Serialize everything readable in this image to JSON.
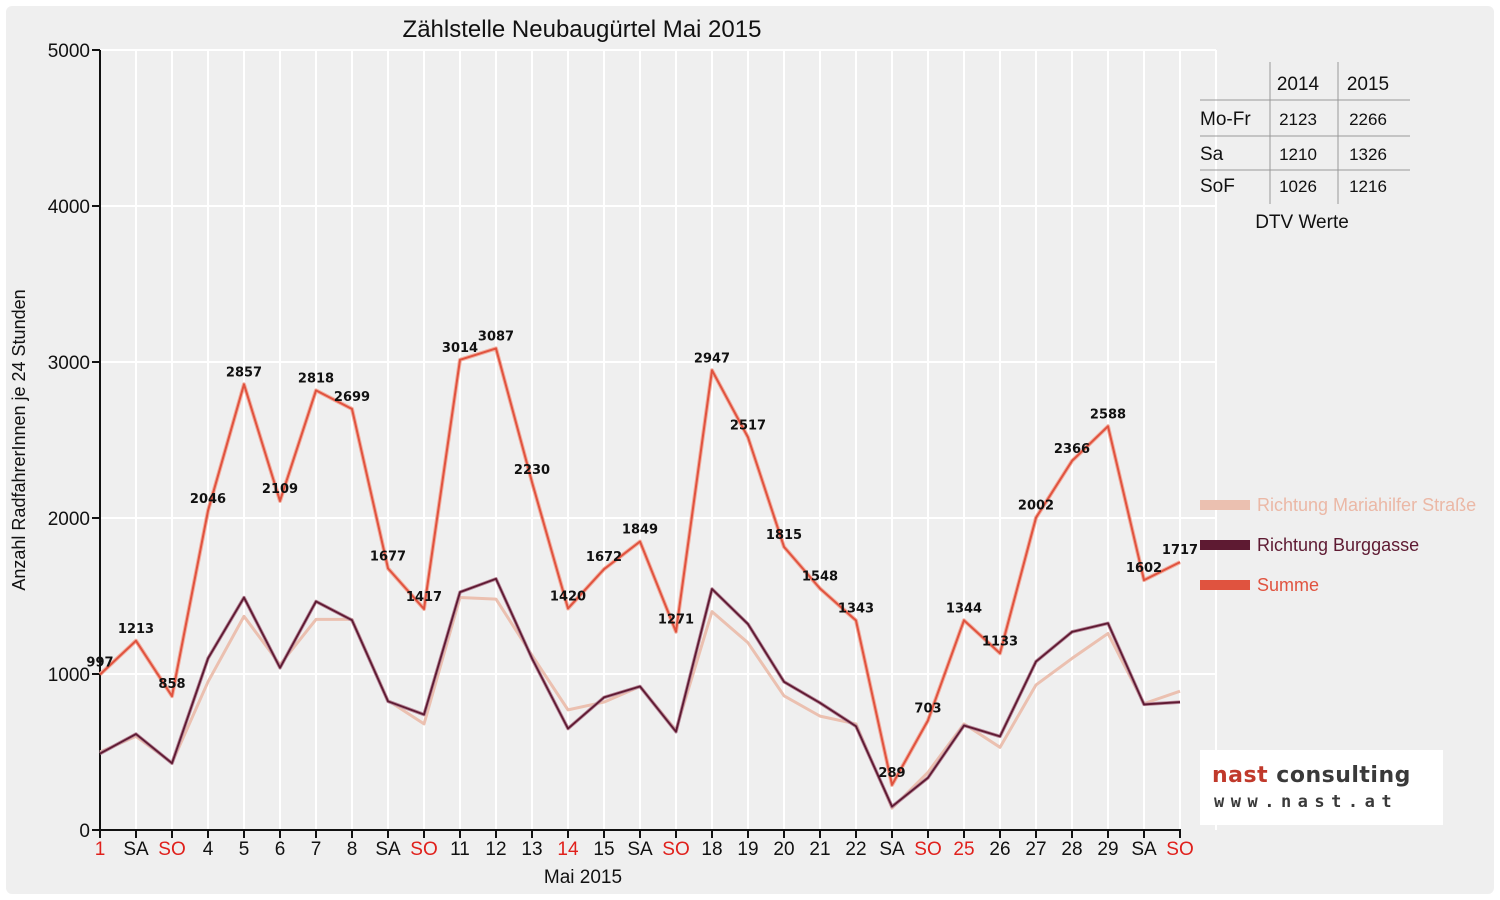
{
  "chart_data": {
    "type": "line",
    "title": "Zählstelle Neubaugürtel Mai 2015",
    "xlabel": "Mai 2015",
    "ylabel": "Anzahl RadfahrerInnen je 24 Stunden",
    "ylim": [
      0,
      5000
    ],
    "yticks": [
      0,
      1000,
      2000,
      3000,
      4000,
      5000
    ],
    "grid": "vertical",
    "legend_position": "right",
    "categories": [
      "1",
      "SA",
      "SO",
      "4",
      "5",
      "6",
      "7",
      "8",
      "SA",
      "SO",
      "11",
      "12",
      "13",
      "14",
      "15",
      "SA",
      "SO",
      "18",
      "19",
      "20",
      "21",
      "22",
      "SA",
      "SO",
      "25",
      "26",
      "27",
      "28",
      "29",
      "SA",
      "SO"
    ],
    "highlight_categories": [
      0,
      2,
      9,
      13,
      16,
      23,
      24,
      30
    ],
    "series": [
      {
        "name": "Richtung Mariahilfer Straße",
        "color": "#ebc0b0",
        "values": [
          500,
          600,
          430,
          950,
          1370,
          1060,
          1350,
          1350,
          830,
          680,
          1490,
          1480,
          1120,
          770,
          820,
          920,
          640,
          1400,
          1200,
          860,
          730,
          680,
          140,
          370,
          680,
          530,
          930,
          1100,
          1260,
          810,
          890
        ]
      },
      {
        "name": "Richtung Burggasse",
        "color": "#5e1a32",
        "values": [
          490,
          615,
          428,
          1100,
          1490,
          1040,
          1465,
          1345,
          825,
          740,
          1525,
          1610,
          1100,
          650,
          850,
          920,
          630,
          1545,
          1320,
          950,
          815,
          665,
          150,
          335,
          670,
          600,
          1080,
          1270,
          1325,
          805,
          820
        ]
      },
      {
        "name": "Summe",
        "color": "#e0533f",
        "values": [
          997,
          1213,
          858,
          2046,
          2857,
          2109,
          2818,
          2699,
          1677,
          1417,
          3014,
          3087,
          2230,
          1420,
          1672,
          1849,
          1271,
          2947,
          2517,
          1815,
          1548,
          1343,
          289,
          703,
          1344,
          1133,
          2002,
          2366,
          2588,
          1602,
          1717
        ]
      }
    ]
  },
  "dtv_table": {
    "caption": "DTV Werte",
    "columns": [
      "2014",
      "2015"
    ],
    "rows": [
      {
        "label": "Mo-Fr",
        "values": [
          "2123",
          "2266"
        ]
      },
      {
        "label": "Sa",
        "values": [
          "1210",
          "1326"
        ]
      },
      {
        "label": "SoF",
        "values": [
          "1026",
          "1216"
        ]
      }
    ]
  },
  "logo": {
    "part1": "nast",
    "part2": " consulting",
    "url": "www.nast.at"
  },
  "colors": {
    "highlight": "#e0201b",
    "axis": "#111111",
    "grid": "#ffffff"
  }
}
